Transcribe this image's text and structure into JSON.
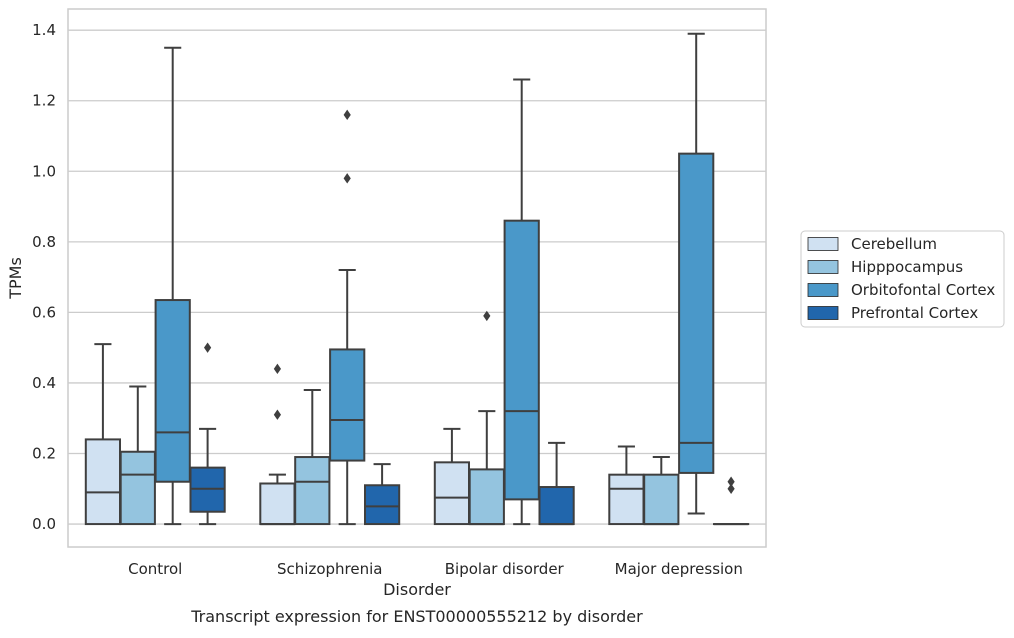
{
  "chart_data": {
    "type": "box",
    "xlabel": "Disorder",
    "ylabel": "TPMs",
    "caption": "Transcript expression for ENST00000555212 by disorder",
    "ylim": [
      -0.065,
      1.46
    ],
    "yticks": [
      0.0,
      0.2,
      0.4,
      0.6,
      0.8,
      1.0,
      1.2,
      1.4
    ],
    "ytick_labels": [
      "0.0",
      "0.2",
      "0.4",
      "0.6",
      "0.8",
      "1.0",
      "1.2",
      "1.4"
    ],
    "grid": "horizontal",
    "legend_position": "right",
    "categories": [
      "Control",
      "Schizophrenia",
      "Bipolar disorder",
      "Major depression"
    ],
    "series": [
      {
        "name": "Cerebellum",
        "color": "#d0e1f2",
        "boxes": [
          {
            "whislo": 0.0,
            "q1": 0.0,
            "med": 0.09,
            "q3": 0.24,
            "whishi": 0.51,
            "fliers": []
          },
          {
            "whislo": 0.0,
            "q1": 0.0,
            "med": 0.0,
            "q3": 0.115,
            "whishi": 0.14,
            "fliers": [
              0.31,
              0.44
            ]
          },
          {
            "whislo": 0.0,
            "q1": 0.0,
            "med": 0.075,
            "q3": 0.175,
            "whishi": 0.27,
            "fliers": []
          },
          {
            "whislo": 0.0,
            "q1": 0.0,
            "med": 0.1,
            "q3": 0.14,
            "whishi": 0.22,
            "fliers": []
          }
        ]
      },
      {
        "name": "Hipppocampus",
        "color": "#94c4df",
        "boxes": [
          {
            "whislo": 0.0,
            "q1": 0.0,
            "med": 0.14,
            "q3": 0.205,
            "whishi": 0.39,
            "fliers": []
          },
          {
            "whislo": 0.0,
            "q1": 0.0,
            "med": 0.12,
            "q3": 0.19,
            "whishi": 0.38,
            "fliers": []
          },
          {
            "whislo": 0.0,
            "q1": 0.0,
            "med": 0.0,
            "q3": 0.155,
            "whishi": 0.32,
            "fliers": [
              0.59
            ]
          },
          {
            "whislo": 0.0,
            "q1": 0.0,
            "med": 0.0,
            "q3": 0.14,
            "whishi": 0.19,
            "fliers": []
          }
        ]
      },
      {
        "name": "Orbitofontal Cortex",
        "color": "#4a98c9",
        "boxes": [
          {
            "whislo": 0.0,
            "q1": 0.12,
            "med": 0.26,
            "q3": 0.635,
            "whishi": 1.35,
            "fliers": []
          },
          {
            "whislo": 0.0,
            "q1": 0.18,
            "med": 0.295,
            "q3": 0.495,
            "whishi": 0.72,
            "fliers": [
              0.98,
              1.16
            ]
          },
          {
            "whislo": 0.0,
            "q1": 0.07,
            "med": 0.32,
            "q3": 0.86,
            "whishi": 1.26,
            "fliers": []
          },
          {
            "whislo": 0.03,
            "q1": 0.145,
            "med": 0.23,
            "q3": 1.05,
            "whishi": 1.39,
            "fliers": []
          }
        ]
      },
      {
        "name": "Prefrontal Cortex",
        "color": "#2166ac",
        "boxes": [
          {
            "whislo": 0.0,
            "q1": 0.035,
            "med": 0.1,
            "q3": 0.16,
            "whishi": 0.27,
            "fliers": [
              0.5
            ]
          },
          {
            "whislo": 0.0,
            "q1": 0.0,
            "med": 0.05,
            "q3": 0.11,
            "whishi": 0.17,
            "fliers": []
          },
          {
            "whislo": 0.0,
            "q1": 0.0,
            "med": 0.0,
            "q3": 0.105,
            "whishi": 0.23,
            "fliers": []
          },
          {
            "whislo": 0.0,
            "q1": 0.0,
            "med": 0.0,
            "q3": 0.0,
            "whishi": 0.0,
            "fliers": [
              0.1,
              0.12
            ]
          }
        ]
      }
    ]
  }
}
